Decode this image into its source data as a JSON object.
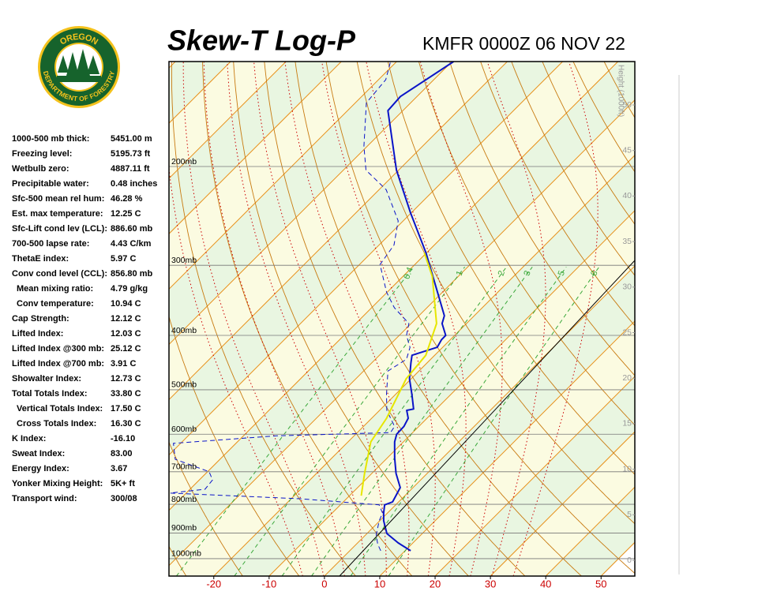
{
  "logo": {
    "top": "OREGON",
    "bottom": "DEPARTMENT OF FORESTRY"
  },
  "indices": [
    [
      "1000-500 mb thick:",
      "5451.00 m"
    ],
    [
      "Freezing level:",
      "5195.73 ft"
    ],
    [
      "Wetbulb zero:",
      "4887.11 ft"
    ],
    [
      "Precipitable water:",
      "0.48 inches"
    ],
    [
      "Sfc-500 mean rel hum:",
      "46.28 %"
    ],
    [
      "Est. max temperature:",
      "12.25 C"
    ],
    [
      "Sfc-Lift cond lev (LCL):",
      "886.60 mb"
    ],
    [
      "700-500 lapse rate:",
      "4.43 C/km"
    ],
    [
      "ThetaE index:",
      "5.97 C"
    ],
    [
      "Conv cond level (CCL):",
      "856.80 mb"
    ],
    [
      "Mean mixing ratio:",
      "4.79 g/kg"
    ],
    [
      "Conv temperature:",
      "10.94 C"
    ],
    [
      "Cap Strength:",
      "12.12 C"
    ],
    [
      "Lifted Index:",
      "12.03 C"
    ],
    [
      "Lifted Index @300 mb:",
      "25.12 C"
    ],
    [
      "Lifted Index @700 mb:",
      "3.91 C"
    ],
    [
      "Showalter Index:",
      "12.73 C"
    ],
    [
      "Total Totals Index:",
      "33.80 C"
    ],
    [
      "Vertical Totals Index:",
      "17.50 C"
    ],
    [
      "Cross Totals Index:",
      "16.30 C"
    ],
    [
      "K Index:",
      "-16.10"
    ],
    [
      "Sweat Index:",
      "83.00"
    ],
    [
      "Energy Index:",
      "3.67"
    ],
    [
      "Yonker Mixing Height:",
      "5K+ ft"
    ],
    [
      "Transport wind:",
      "300/08"
    ]
  ],
  "chart_data": {
    "type": "skew-t",
    "title": "Skew-T Log-P",
    "subtitle": "KMFR 0000Z 06 NOV 22",
    "xlim": [
      -28.1,
      56.1
    ],
    "xticks": [
      -20,
      -10,
      0,
      10,
      20,
      30,
      40,
      50
    ],
    "ylim": [
      1074,
      130
    ],
    "yscale": "log",
    "yticks": [
      {
        "value": 200,
        "label": "200mb"
      },
      {
        "value": 300,
        "label": "300mb"
      },
      {
        "value": 400,
        "label": "400mb"
      },
      {
        "value": 500,
        "label": "500mb"
      },
      {
        "value": 600,
        "label": "600mb"
      },
      {
        "value": 700,
        "label": "700mb"
      },
      {
        "value": 800,
        "label": "800mb"
      },
      {
        "value": 900,
        "label": "900mb"
      },
      {
        "value": 1000,
        "label": "1000mb"
      }
    ],
    "grid": true,
    "height_label": "Height (1000ft)",
    "hlim": [
      0,
      50
    ],
    "height_ticks": [
      0,
      5,
      10,
      15,
      20,
      25,
      30,
      35,
      40,
      45,
      50
    ],
    "isotherms": [
      -120,
      -110,
      -100,
      -90,
      -80,
      -70,
      -60,
      -50,
      -40,
      -30,
      -20,
      -10,
      0,
      10,
      20,
      30,
      40,
      50
    ],
    "band_colors": [
      "#e9f6e1",
      "#fbfbe1"
    ],
    "dry_adiabats": [
      -30,
      -20,
      -10,
      0,
      10,
      20,
      30,
      40,
      50,
      60,
      70,
      80,
      90,
      100,
      110,
      120,
      130,
      140,
      150,
      160,
      170
    ],
    "moist_adiabats": [
      -8,
      -4,
      0,
      4,
      8,
      12,
      16,
      20,
      24,
      28,
      32
    ],
    "mixing_ratios": [
      0.4,
      1,
      2,
      3,
      5,
      8
    ],
    "line_colors": {
      "isotherm": "#e8901a",
      "dry": "#c87a10",
      "moist": "#cc0000",
      "mixing": "#3aa83a",
      "isobar": "#777777",
      "tick": "#cc0000",
      "height": "#999999"
    },
    "series": [
      {
        "color": "#0a14c8",
        "dash": false,
        "pressure": [
          968,
          937,
          902,
          856,
          829,
          802,
          792,
          769,
          747,
          705,
          661,
          619,
          600,
          581,
          562,
          544,
          541,
          510,
          478,
          448,
          434,
          420,
          407,
          400,
          381,
          369,
          335,
          285,
          242,
          203,
          159,
          150,
          130
        ],
        "values": [
          11.0,
          7.3,
          3.6,
          0.7,
          -0.7,
          -2.0,
          -1.1,
          -1.7,
          -2.3,
          -5.6,
          -8.7,
          -11.6,
          -12.6,
          -12.7,
          -13.4,
          -15.1,
          -14.1,
          -17.0,
          -20.3,
          -22.9,
          -24.1,
          -21.0,
          -21.6,
          -21.6,
          -24.4,
          -25.4,
          -30.9,
          -40.1,
          -50.1,
          -60.4,
          -72.7,
          -73.0,
          -69.7
        ]
      },
      {
        "color": "#0a14c8",
        "dash": true,
        "pressure": [
          968,
          943,
          907,
          856,
          829,
          802,
          782,
          764,
          752,
          724,
          700,
          665,
          623,
          604,
          596,
          581,
          544,
          510,
          463,
          441,
          420,
          400,
          381,
          357,
          335,
          299,
          276,
          250,
          220,
          203,
          184,
          154,
          140,
          130
        ],
        "values": [
          5.6,
          3.9,
          1.9,
          -0.1,
          -0.9,
          -3.0,
          -18.4,
          -42.9,
          -37.3,
          -37.6,
          -39.7,
          -48.1,
          -51.3,
          -34.1,
          -14.0,
          -14.4,
          -18.7,
          -21.6,
          -25.6,
          -24.4,
          -25.9,
          -28.7,
          -30.4,
          -35.9,
          -40.1,
          -46.3,
          -47.3,
          -50.9,
          -58.7,
          -65.9,
          -70.6,
          -78.0,
          -78.7,
          -81.1
        ]
      },
      {
        "color": "#e6e600",
        "dash": false,
        "pressure": [
          772,
          705,
          619,
          562,
          478,
          434,
          381,
          314,
          285
        ],
        "values": [
          -7.9,
          -11.3,
          -15.9,
          -17.3,
          -20.9,
          -21.6,
          -25.4,
          -34.7,
          -40.4
        ]
      }
    ]
  }
}
